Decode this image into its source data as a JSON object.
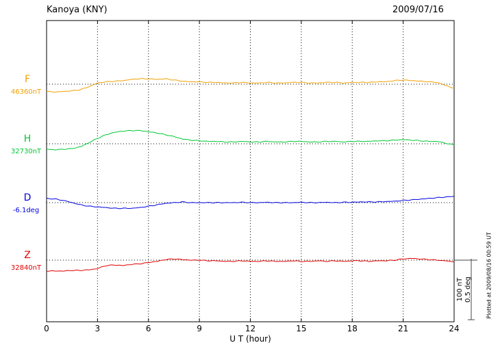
{
  "header": {
    "title": "Kanoya (KNY)",
    "date": "2009/07/16"
  },
  "footer": {
    "plotted_at": "Plotted at 2009/08/16 00:59 UT"
  },
  "chart_data": {
    "type": "line",
    "title": "Kanoya (KNY) magnetogram",
    "date": "2009/07/16",
    "xlabel": "U T (hour)",
    "ylabel": "",
    "xlim": [
      0,
      24
    ],
    "x_ticks": [
      0,
      3,
      6,
      9,
      12,
      15,
      18,
      21,
      24
    ],
    "x_start": 0,
    "x_step": 0.5,
    "grid": "dotted vertical lines every 3 hours; dotted horizontal baseline per trace",
    "legend_position": "left margin, one colored label per trace",
    "scale_bar_labels": [
      "100 nT",
      "0.5 deg"
    ],
    "scale": {
      "nT_per_bar": 100,
      "deg_per_bar": 0.5
    },
    "series": [
      {
        "name": "F",
        "baseline_label": "46360nT",
        "baseline_value": 46360,
        "unit": "nT",
        "color": "#f0a000",
        "values": [
          -12,
          -13,
          -12,
          -11,
          -9,
          -4,
          2,
          4,
          5,
          6,
          8,
          9,
          9,
          8,
          9,
          7,
          5,
          4,
          4,
          3,
          3,
          2,
          2,
          3,
          2,
          2,
          3,
          2,
          2,
          3,
          3,
          2,
          2,
          3,
          3,
          2,
          3,
          3,
          3,
          4,
          4,
          6,
          7,
          6,
          5,
          4,
          3,
          -2,
          -7
        ]
      },
      {
        "name": "H",
        "baseline_label": "32730nT",
        "baseline_value": 32730,
        "unit": "nT",
        "color": "#00c832",
        "values": [
          -9,
          -10,
          -9,
          -8,
          -5,
          2,
          9,
          15,
          19,
          21,
          22,
          22,
          20,
          18,
          15,
          12,
          8,
          6,
          5,
          4,
          4,
          3,
          3,
          4,
          3,
          3,
          4,
          3,
          3,
          4,
          4,
          3,
          3,
          4,
          4,
          3,
          4,
          4,
          4,
          5,
          5,
          6,
          7,
          6,
          5,
          4,
          4,
          1,
          -2
        ]
      },
      {
        "name": "D",
        "baseline_label": "-6.1deg",
        "baseline_value": -6.1,
        "unit": "deg",
        "color": "#0000e0",
        "values": [
          0.035,
          0.03,
          0.018,
          0.0,
          -0.018,
          -0.03,
          -0.035,
          -0.041,
          -0.047,
          -0.047,
          -0.047,
          -0.041,
          -0.03,
          -0.018,
          -0.006,
          0.0,
          0.006,
          0.0,
          0.0,
          0.0,
          0.0,
          0.0,
          0.0,
          0.003,
          0.0,
          0.0,
          0.003,
          0.0,
          0.0,
          0.0,
          0.003,
          0.0,
          0.0,
          0.003,
          0.0,
          0.003,
          0.003,
          0.006,
          0.006,
          0.006,
          0.009,
          0.012,
          0.018,
          0.023,
          0.029,
          0.035,
          0.041,
          0.047,
          0.053
        ]
      },
      {
        "name": "Z",
        "baseline_label": "32840nT",
        "baseline_value": 32840,
        "unit": "nT",
        "color": "#e00000",
        "values": [
          -18,
          -18,
          -18,
          -17,
          -17,
          -16,
          -14,
          -9,
          -8,
          -9,
          -7,
          -6,
          -4,
          -2,
          1,
          2,
          1,
          0,
          0,
          -1,
          -1,
          -2,
          -2,
          -1,
          -2,
          -2,
          -1,
          -2,
          -2,
          -1,
          -2,
          -2,
          -1,
          -2,
          -1,
          -2,
          -1,
          -1,
          -2,
          -1,
          -1,
          0,
          2,
          3,
          2,
          1,
          0,
          -1,
          -3
        ]
      }
    ]
  }
}
